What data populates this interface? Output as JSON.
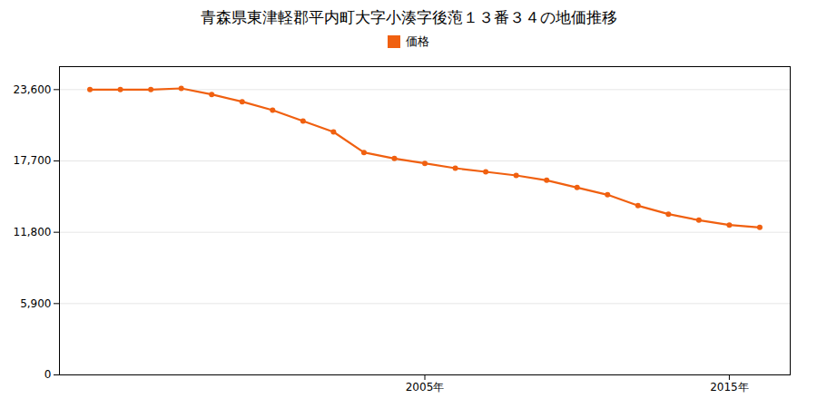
{
  "chart_data": {
    "type": "line",
    "title": "青森県東津軽郡平内町大字小湊字後萢１３番３４の地価推移",
    "x": [
      1994,
      1995,
      1996,
      1997,
      1998,
      1999,
      2000,
      2001,
      2002,
      2003,
      2004,
      2005,
      2006,
      2007,
      2008,
      2009,
      2010,
      2011,
      2012,
      2013,
      2014,
      2015,
      2016
    ],
    "series": [
      {
        "name": "価格",
        "color": "#f06010",
        "values": [
          23600,
          23600,
          23600,
          23700,
          23200,
          22600,
          21900,
          21000,
          20100,
          18400,
          17900,
          17500,
          17100,
          16800,
          16500,
          16100,
          15500,
          14900,
          14000,
          13300,
          12800,
          12400,
          12200
        ]
      }
    ],
    "marker": "circle",
    "xlim": [
      1993,
      2017
    ],
    "xticks": [
      {
        "value": 2005,
        "label": "2005年"
      },
      {
        "value": 2015,
        "label": "2015年"
      }
    ],
    "ylim": [
      0,
      25500
    ],
    "yticks": [
      0,
      {
        "value": 5900,
        "label": "5,900"
      },
      {
        "value": 11800,
        "label": "11,800"
      },
      {
        "value": 17700,
        "label": "17,700"
      },
      {
        "value": 23600,
        "label": "23,600"
      }
    ],
    "grid": "y",
    "legend": "top"
  }
}
